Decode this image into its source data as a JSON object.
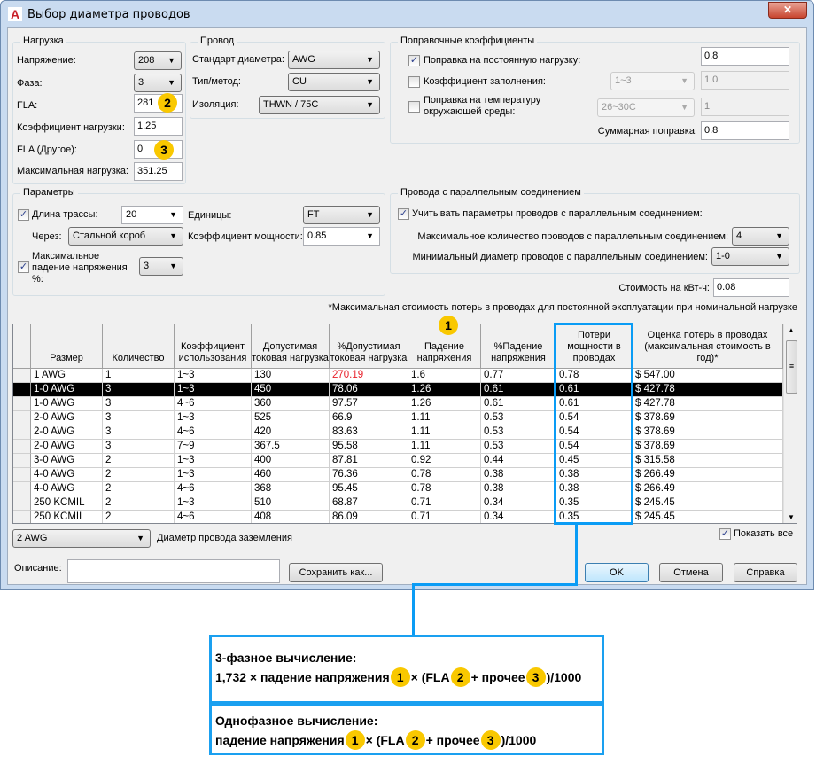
{
  "window": {
    "title": "Выбор диаметра проводов",
    "icon": "autocad-a-icon",
    "close": "✕"
  },
  "load": {
    "legend": "Нагрузка",
    "voltage_label": "Напряжение:",
    "voltage": "208",
    "phase_label": "Фаза:",
    "phase": "3",
    "fla_label": "FLA:",
    "fla": "281",
    "load_factor_label": "Коэффициент нагрузки:",
    "load_factor": "1.25",
    "fla_other_label": "FLA (Другое):",
    "fla_other": "0",
    "max_load_label": "Максимальная нагрузка:",
    "max_load": "351.25"
  },
  "wire": {
    "legend": "Провод",
    "standard_label": "Стандарт диаметра:",
    "standard": "AWG",
    "type_label": "Тип/метод:",
    "type": "CU",
    "insulation_label": "Изоляция:",
    "insulation": "THWN / 75C"
  },
  "correction": {
    "legend": "Поправочные коэффициенты",
    "continuous_label": "Поправка на постоянную нагрузку:",
    "continuous_checked": true,
    "continuous": "0.8",
    "fill_label": "Коэффициент заполнения:",
    "fill_checked": false,
    "fill_range": "1~3",
    "fill": "1.0",
    "temp_label_1": "Поправка на температуру",
    "temp_label_2": "окружающей среды:",
    "temp_checked": false,
    "temp_range": "26~30C",
    "temp": "1",
    "total_label": "Суммарная поправка:",
    "total": "0.8"
  },
  "params": {
    "legend": "Параметры",
    "run_length_label": "Длина трассы:",
    "run_length_checked": true,
    "run_length": "20",
    "units_label": "Единицы:",
    "units": "FT",
    "via_label": "Через:",
    "via": "Стальной короб",
    "power_factor_label": "Коэффициент мощности:",
    "power_factor": "0.85",
    "max_drop_label_1": "Максимальное",
    "max_drop_label_2": "падение напряжения",
    "max_drop_label_3": "%:",
    "max_drop_checked": true,
    "max_drop": "3"
  },
  "parallel": {
    "legend": "Провода с параллельным соединением",
    "consider_label": "Учитывать параметры проводов с параллельным соединением:",
    "consider_checked": true,
    "max_count_label": "Максимальное количество проводов с параллельным соединением:",
    "max_count": "4",
    "min_size_label": "Минимальный диаметр проводов с параллельным соединением:",
    "min_size": "1-0"
  },
  "cost": {
    "label": "Стоимость на кВт-ч:",
    "value": "0.08"
  },
  "note": "*Максимальная стоимость потерь в проводах для постоянной эксплуатации при номинальной нагрузке",
  "table": {
    "columns": [
      "Размер",
      "Количество",
      "Коэффициент использования",
      "Допустимая токовая нагрузка",
      "%Допустимая токовая нагрузка",
      "Падение напряжения",
      "%Падение напряжения",
      "Потери мощности в проводах",
      "Оценка потерь в проводах (максимальная стоимость в год)*"
    ],
    "selected_row": 1,
    "warning_color": "#e8202a",
    "rows": [
      [
        "1 AWG",
        "1",
        "1~3",
        "130",
        "270.19",
        "1.6",
        "0.77",
        "0.78",
        "$ 547.00"
      ],
      [
        "1-0 AWG",
        "3",
        "1~3",
        "450",
        "78.06",
        "1.26",
        "0.61",
        "0.61",
        "$ 427.78"
      ],
      [
        "1-0 AWG",
        "3",
        "4~6",
        "360",
        "97.57",
        "1.26",
        "0.61",
        "0.61",
        "$ 427.78"
      ],
      [
        "2-0 AWG",
        "3",
        "1~3",
        "525",
        "66.9",
        "1.11",
        "0.53",
        "0.54",
        "$ 378.69"
      ],
      [
        "2-0 AWG",
        "3",
        "4~6",
        "420",
        "83.63",
        "1.11",
        "0.53",
        "0.54",
        "$ 378.69"
      ],
      [
        "2-0 AWG",
        "3",
        "7~9",
        "367.5",
        "95.58",
        "1.11",
        "0.53",
        "0.54",
        "$ 378.69"
      ],
      [
        "3-0 AWG",
        "2",
        "1~3",
        "400",
        "87.81",
        "0.92",
        "0.44",
        "0.45",
        "$ 315.58"
      ],
      [
        "4-0 AWG",
        "2",
        "1~3",
        "460",
        "76.36",
        "0.78",
        "0.38",
        "0.38",
        "$ 266.49"
      ],
      [
        "4-0 AWG",
        "2",
        "4~6",
        "368",
        "95.45",
        "0.78",
        "0.38",
        "0.38",
        "$ 266.49"
      ],
      [
        "250 KCMIL",
        "2",
        "1~3",
        "510",
        "68.87",
        "0.71",
        "0.34",
        "0.35",
        "$ 245.45"
      ],
      [
        "250 KCMIL",
        "2",
        "4~6",
        "408",
        "86.09",
        "0.71",
        "0.34",
        "0.35",
        "$ 245.45"
      ]
    ]
  },
  "ground": {
    "value": "2 AWG",
    "label": "Диаметр провода заземления"
  },
  "show_all": {
    "label": "Показать все",
    "checked": true
  },
  "description": {
    "label": "Описание:",
    "value": ""
  },
  "buttons": {
    "save_as": "Сохранить как...",
    "ok": "OK",
    "cancel": "Отмена",
    "help": "Справка"
  },
  "badges": {
    "b1": "1",
    "b2": "2",
    "b3": "3"
  },
  "formula3": {
    "title": "3-фазное вычисление:",
    "p1": "1,732 × падение напряжения",
    "p2": "× (FLA",
    "p3": "+ прочее",
    "p4": ")/1000"
  },
  "formula1": {
    "title": "Однофазное вычисление:",
    "p1": "падение напряжения",
    "p2": "× (FLA",
    "p3": "+ прочее",
    "p4": ")/1000"
  },
  "colors": {
    "highlight": "#0a9cf5",
    "badge": "#f9c800",
    "selected_row": "#000000"
  }
}
